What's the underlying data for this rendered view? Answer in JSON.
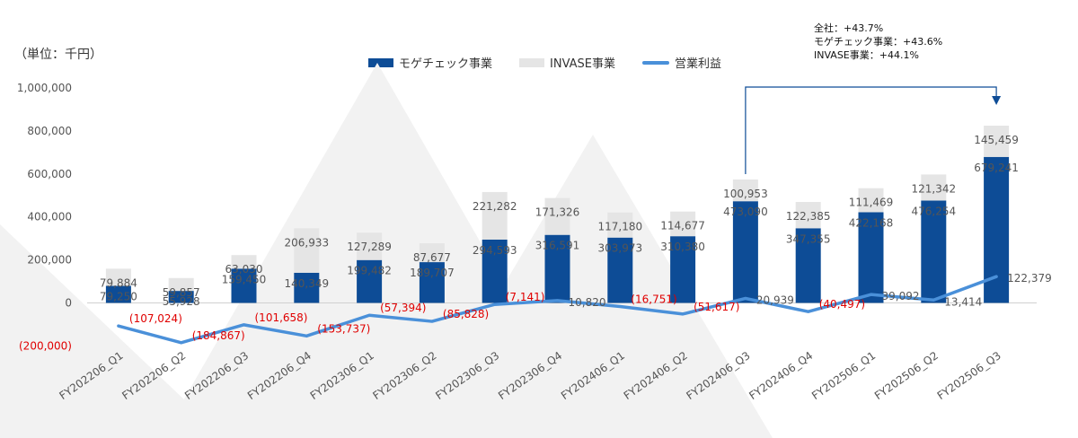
{
  "unit_label": "（単位：千円）",
  "growth_note": {
    "total": "全社：+43.7%",
    "mogechek": "モゲチェック事業：+43.6%",
    "invase": "INVASE事業：+44.1%"
  },
  "colors": {
    "mogechek": "#0d4c96",
    "invase": "#e5e5e5",
    "profit": "#4a90d9",
    "negative_text": "#e00000",
    "bg_triangles": "#f2f2f2"
  },
  "chart_data": {
    "type": "bar",
    "stacked": true,
    "categories": [
      "FY202206_Q1",
      "FY202206_Q2",
      "FY202206_Q3",
      "FY202206_Q4",
      "FY202306_Q1",
      "FY202306_Q2",
      "FY202306_Q3",
      "FY202306_Q4",
      "FY202406_Q1",
      "FY202406_Q2",
      "FY202406_Q3",
      "FY202406_Q4",
      "FY202506_Q1",
      "FY202506_Q2",
      "FY202506_Q3"
    ],
    "series": [
      {
        "name": "モゲチェック事業",
        "kind": "bar",
        "values": [
          79250,
          55928,
          159450,
          140349,
          199482,
          189707,
          294593,
          316591,
          303973,
          310380,
          473090,
          347355,
          422168,
          476254,
          679241
        ],
        "labels": [
          "79,250",
          "55,928",
          "159,450",
          "140,349",
          "199,482",
          "189,707",
          "294,593",
          "316,591",
          "303,973",
          "310,380",
          "473,090",
          "347,355",
          "422,168",
          "476,254",
          "679,241"
        ]
      },
      {
        "name": "INVASE事業",
        "kind": "bar",
        "values": [
          79884,
          59857,
          63030,
          206933,
          127289,
          87677,
          221282,
          171326,
          117180,
          114677,
          100953,
          122385,
          111469,
          121342,
          145459
        ],
        "labels": [
          "79,884",
          "59,857",
          "63,030",
          "206,933",
          "127,289",
          "87,677",
          "221,282",
          "171,326",
          "117,180",
          "114,677",
          "100,953",
          "122,385",
          "111,469",
          "121,342",
          "145,459"
        ]
      },
      {
        "name": "営業利益",
        "kind": "line",
        "values": [
          -107024,
          -184867,
          -101658,
          -153737,
          -57394,
          -85828,
          -7141,
          10820,
          -16751,
          -51617,
          20939,
          -40497,
          39092,
          13414,
          122379
        ],
        "labels": [
          "(107,024)",
          "(184,867)",
          "(101,658)",
          "(153,737)",
          "(57,394)",
          "(85,828)",
          "(7,141)",
          "10,820",
          "(16,751)",
          "(51,617)",
          "20,939",
          "(40,497)",
          "39,092",
          "13,414",
          "122,379"
        ]
      }
    ],
    "ylim": [
      -200000,
      1000000
    ],
    "yticks": [
      -200000,
      0,
      200000,
      400000,
      600000,
      800000,
      1000000
    ],
    "ytick_labels": [
      "(200,000)",
      "0",
      "200,000",
      "400,000",
      "600,000",
      "800,000",
      "1,000,000"
    ],
    "legend_position": "top-center",
    "grid": false,
    "annotation": {
      "from": "FY202406_Q3",
      "to": "FY202506_Q3"
    }
  }
}
